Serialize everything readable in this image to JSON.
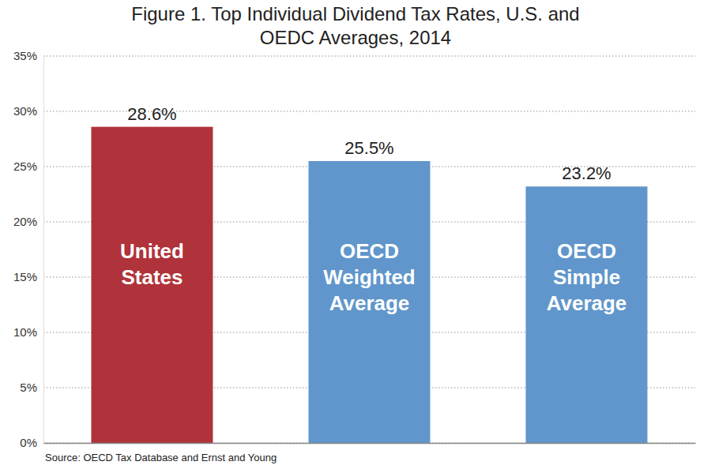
{
  "chart_data": {
    "type": "bar",
    "title": "Figure 1. Top Individual Dividend Tax Rates, U.S. and OEDC Averages, 2014",
    "source": "Source: OECD Tax Database and Ernst and Young",
    "categories": [
      "United States",
      "OECD Weighted Average",
      "OECD Simple Average"
    ],
    "values": [
      28.6,
      25.5,
      23.2
    ],
    "value_labels": [
      "28.6%",
      "25.5%",
      "23.2%"
    ],
    "colors": [
      "#b0323a",
      "#6096cb",
      "#6096cb"
    ],
    "ylim": [
      0,
      35
    ],
    "yticks": [
      {
        "value": 0,
        "label": "0%"
      },
      {
        "value": 5,
        "label": "5%"
      },
      {
        "value": 10,
        "label": "10%"
      },
      {
        "value": 15,
        "label": "15%"
      },
      {
        "value": 20,
        "label": "20%"
      },
      {
        "value": 25,
        "label": "25%"
      },
      {
        "value": 30,
        "label": "30%"
      },
      {
        "value": 35,
        "label": "35%"
      }
    ],
    "grid": true,
    "data_labels": true,
    "tick_labels": "y"
  }
}
